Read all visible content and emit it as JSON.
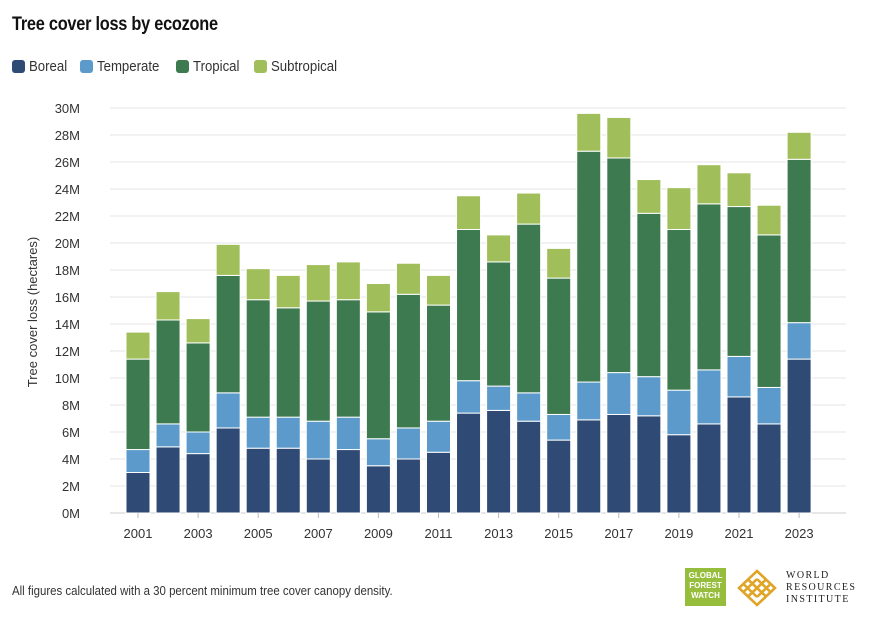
{
  "chart_data": {
    "type": "bar",
    "stacked": true,
    "title": "Tree cover loss by ecozone",
    "ylabel": "Tree cover loss (hectares)",
    "xlabel": "",
    "ylim": [
      0,
      30000000
    ],
    "yticks": [
      "0M",
      "2M",
      "4M",
      "6M",
      "8M",
      "10M",
      "12M",
      "14M",
      "16M",
      "18M",
      "20M",
      "22M",
      "24M",
      "26M",
      "28M",
      "30M"
    ],
    "yticks_values": [
      0,
      2000000,
      4000000,
      6000000,
      8000000,
      10000000,
      12000000,
      14000000,
      16000000,
      18000000,
      20000000,
      22000000,
      24000000,
      26000000,
      28000000,
      30000000
    ],
    "categories": [
      "2001",
      "2002",
      "2003",
      "2004",
      "2005",
      "2006",
      "2007",
      "2008",
      "2009",
      "2010",
      "2011",
      "2012",
      "2013",
      "2014",
      "2015",
      "2016",
      "2017",
      "2018",
      "2019",
      "2020",
      "2021",
      "2022",
      "2023"
    ],
    "xtick_labels": [
      "2001",
      "",
      "2003",
      "",
      "2005",
      "",
      "2007",
      "",
      "2009",
      "",
      "2011",
      "",
      "2013",
      "",
      "2015",
      "",
      "2017",
      "",
      "2019",
      "",
      "2021",
      "",
      "2023"
    ],
    "grid": true,
    "legend_position": "top-left",
    "series": [
      {
        "name": "Boreal",
        "color": "#2f4a74",
        "values": [
          3000000,
          4900000,
          4400000,
          6300000,
          4800000,
          4800000,
          4000000,
          4700000,
          3500000,
          4000000,
          4500000,
          7400000,
          7600000,
          6800000,
          5400000,
          6900000,
          7300000,
          7200000,
          5800000,
          6600000,
          8600000,
          6600000,
          11400000
        ]
      },
      {
        "name": "Temperate",
        "color": "#5b9acb",
        "values": [
          1700000,
          1700000,
          1600000,
          2600000,
          2300000,
          2300000,
          2800000,
          2400000,
          2000000,
          2300000,
          2300000,
          2400000,
          1800000,
          2100000,
          1900000,
          2800000,
          3100000,
          2900000,
          3300000,
          4000000,
          3000000,
          2700000,
          2700000
        ]
      },
      {
        "name": "Tropical",
        "color": "#3e7a4f",
        "values": [
          6700000,
          7700000,
          6600000,
          8700000,
          8700000,
          8100000,
          8900000,
          8700000,
          9400000,
          9900000,
          8600000,
          11200000,
          9200000,
          12500000,
          10100000,
          17100000,
          15900000,
          12100000,
          11900000,
          12300000,
          11100000,
          11300000,
          12100000
        ]
      },
      {
        "name": "Subtropical",
        "color": "#a0be5a",
        "values": [
          2000000,
          2100000,
          1800000,
          2300000,
          2300000,
          2400000,
          2700000,
          2800000,
          2100000,
          2300000,
          2200000,
          2500000,
          2000000,
          2300000,
          2200000,
          2800000,
          3000000,
          2500000,
          3100000,
          2900000,
          2500000,
          2200000,
          2000000
        ]
      }
    ]
  },
  "footnote": "All figures calculated with a 30 percent minimum tree cover canopy density.",
  "logos": {
    "gfw": {
      "line1": "GLOBAL",
      "line2": "FOREST",
      "line3": "WATCH",
      "color": "#97bd3d"
    },
    "wri": {
      "line1": "WORLD",
      "line2": "RESOURCES",
      "line3": "INSTITUTE",
      "color": "#e0a526"
    }
  }
}
